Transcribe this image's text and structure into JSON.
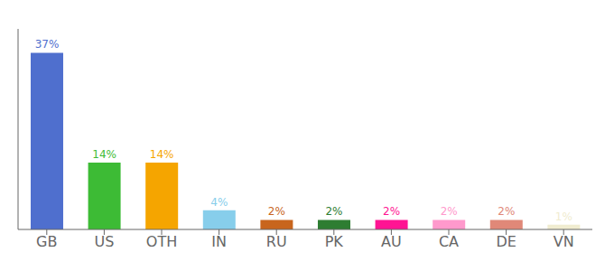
{
  "chart_data": {
    "type": "bar",
    "categories": [
      "GB",
      "US",
      "OTH",
      "IN",
      "RU",
      "PK",
      "AU",
      "CA",
      "DE",
      "VN"
    ],
    "values": [
      37,
      14,
      14,
      4,
      2,
      2,
      2,
      2,
      2,
      1
    ],
    "value_labels": [
      "37%",
      "14%",
      "14%",
      "4%",
      "2%",
      "2%",
      "2%",
      "2%",
      "2%",
      "1%"
    ],
    "colors": [
      "#4f6fce",
      "#3dbb35",
      "#f5a500",
      "#87ceeb",
      "#c8651d",
      "#2e7d32",
      "#ff1493",
      "#ff99cc",
      "#e08878",
      "#f0ecd0"
    ],
    "ylim": [
      0,
      42
    ],
    "data_labels": true,
    "tick_labels": "x",
    "grid": false
  }
}
